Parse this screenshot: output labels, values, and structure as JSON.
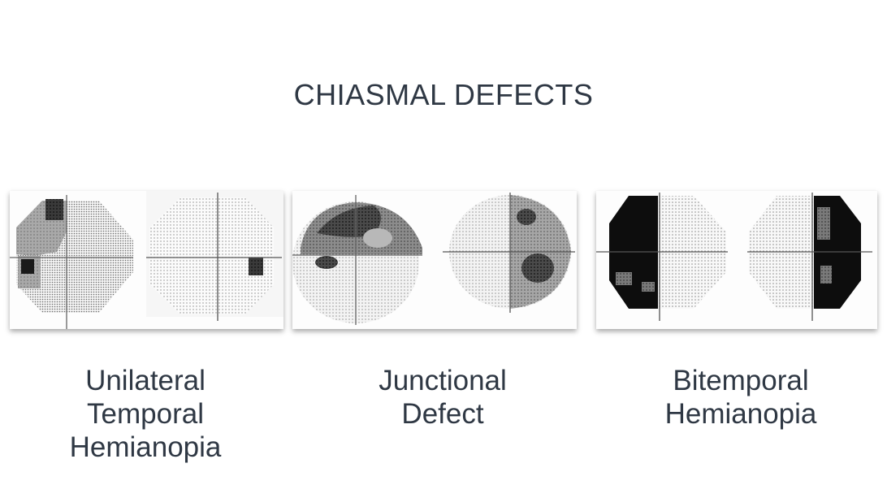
{
  "title": "CHIASMAL DEFECTS",
  "panels": [
    {
      "lines": [
        "Unilateral",
        "Temporal",
        "Hemianopia"
      ]
    },
    {
      "lines": [
        "Junctional",
        "Defect"
      ]
    },
    {
      "lines": [
        "Bitemporal",
        "Hemianopia"
      ]
    }
  ],
  "colors": {
    "text": "#2f3844",
    "field_light": "#c8c8c8",
    "field_dark": "#111111"
  }
}
